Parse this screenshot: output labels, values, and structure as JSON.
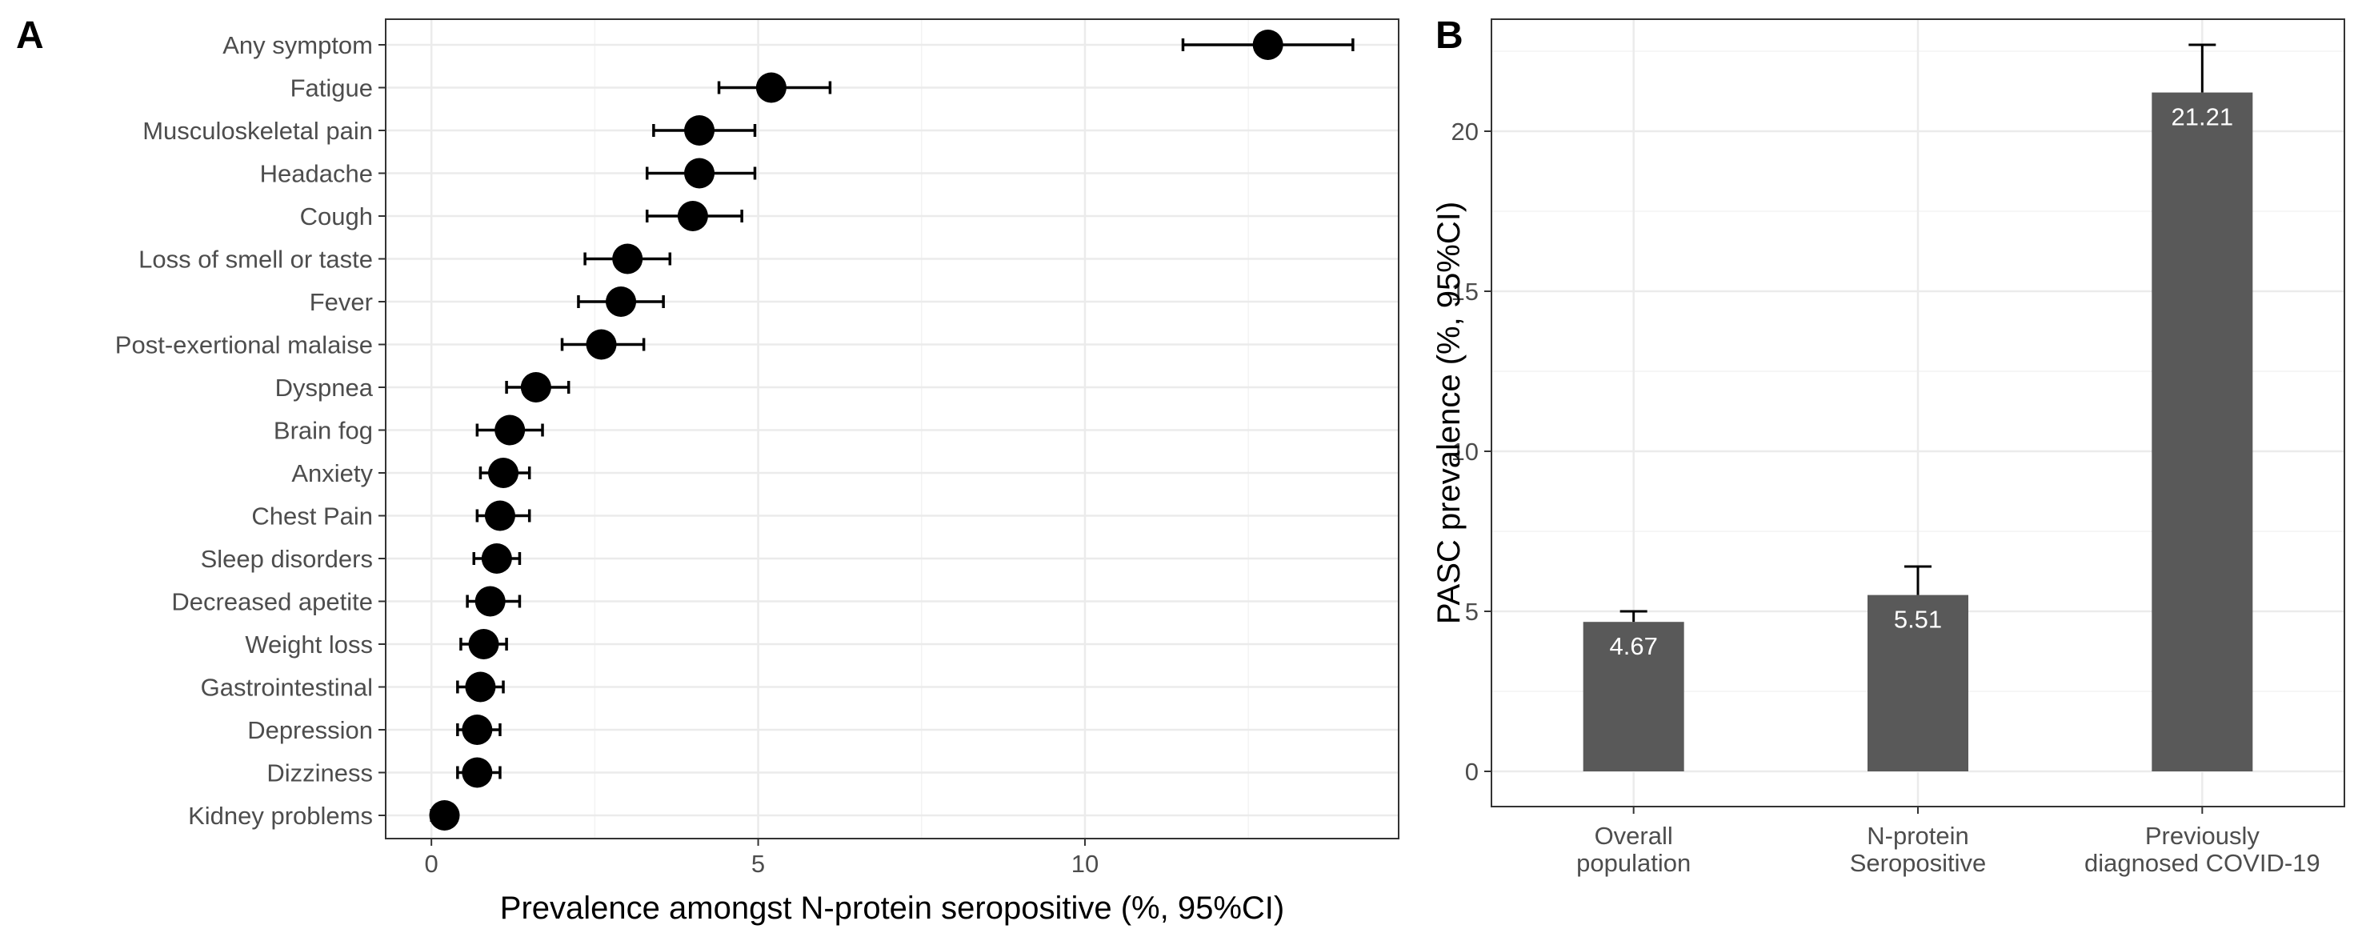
{
  "chart_data": [
    {
      "panel": "A",
      "type": "scatter",
      "orientation": "horizontal",
      "xlabel": "Prevalence amongst N-protein seropositive (%, 95%CI)",
      "ylabel": "",
      "xlim": [
        -0.7,
        14.8
      ],
      "xticks": [
        0,
        5,
        10
      ],
      "grid": true,
      "legend": "none",
      "categories": [
        "Any symptom",
        "Fatigue",
        "Musculoskeletal pain",
        "Headache",
        "Cough",
        "Loss of smell or taste",
        "Fever",
        "Post-exertional malaise",
        "Dyspnea",
        "Brain fog",
        "Anxiety",
        "Chest Pain",
        "Sleep disorders",
        "Decreased apetite",
        "Weight loss",
        "Gastrointestinal",
        "Depression",
        "Dizziness",
        "Kidney problems"
      ],
      "values": [
        12.8,
        5.2,
        4.1,
        4.1,
        4.0,
        3.0,
        2.9,
        2.6,
        1.6,
        1.2,
        1.1,
        1.05,
        1.0,
        0.9,
        0.8,
        0.75,
        0.7,
        0.7,
        0.2
      ],
      "ci_low": [
        11.5,
        4.4,
        3.4,
        3.3,
        3.3,
        2.35,
        2.25,
        2.0,
        1.15,
        0.7,
        0.75,
        0.7,
        0.65,
        0.55,
        0.45,
        0.4,
        0.4,
        0.4,
        0.0
      ],
      "ci_high": [
        14.1,
        6.1,
        4.95,
        4.95,
        4.75,
        3.65,
        3.55,
        3.25,
        2.1,
        1.7,
        1.5,
        1.5,
        1.35,
        1.35,
        1.15,
        1.1,
        1.05,
        1.05,
        0.2
      ],
      "point_color": "#000000"
    },
    {
      "panel": "B",
      "type": "bar",
      "xlabel": "",
      "ylabel": "PASC prevalence (%, 95%CI)",
      "ylim": [
        -1.1,
        23.5
      ],
      "yticks": [
        0,
        5,
        10,
        15,
        20
      ],
      "grid": true,
      "legend": "none",
      "categories": [
        [
          "Overall",
          "population"
        ],
        [
          "N-protein",
          "Seropositive"
        ],
        [
          "Previously",
          "diagnosed COVID-19"
        ]
      ],
      "values": [
        4.67,
        5.51,
        21.21
      ],
      "value_labels": [
        "4.67",
        "5.51",
        "21.21"
      ],
      "ci_high": [
        5.0,
        6.4,
        22.7
      ],
      "bar_color": "#595959"
    }
  ],
  "panel_letters": [
    "A",
    "B"
  ]
}
